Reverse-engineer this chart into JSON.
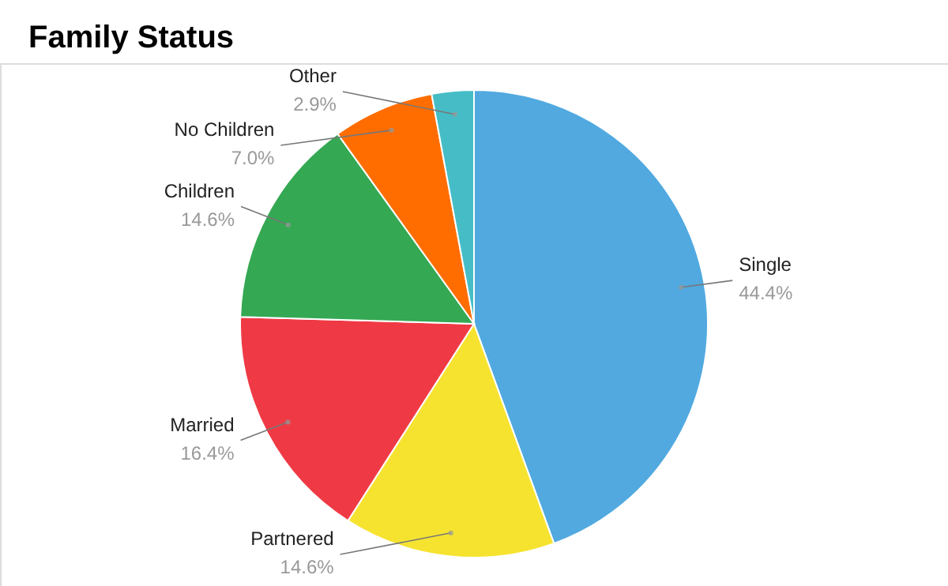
{
  "chart_data": {
    "type": "pie",
    "title": "Family Status",
    "categories": [
      "Single",
      "Partnered",
      "Married",
      "Children",
      "No Children",
      "Other"
    ],
    "values": [
      44.4,
      14.6,
      16.4,
      14.6,
      7.0,
      2.9
    ],
    "value_labels": [
      "44.4%",
      "14.6%",
      "16.4%",
      "14.6%",
      "7.0%",
      "2.9%"
    ],
    "colors": [
      "#51a9e0",
      "#f6e330",
      "#ef3a45",
      "#34a853",
      "#ff6d01",
      "#46bdc6"
    ]
  }
}
